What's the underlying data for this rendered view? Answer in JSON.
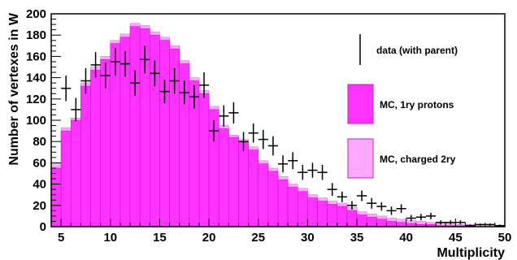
{
  "chart_data": {
    "type": "histogram",
    "xlabel": "Multiplicity",
    "ylabel": "Number of vertexes in W",
    "xlim": [
      4,
      50
    ],
    "ylim": [
      0,
      200
    ],
    "x_ticks": [
      5,
      10,
      15,
      20,
      25,
      30,
      35,
      40,
      45,
      50
    ],
    "y_ticks": [
      0,
      20,
      40,
      60,
      80,
      100,
      120,
      140,
      160,
      180,
      200
    ],
    "grid": false,
    "legend_position": "right",
    "colors": {
      "mc_protons": "#ff33ff",
      "mc_charged_2ry": "#ffaaff",
      "data_marker": "#000000"
    },
    "series": [
      {
        "name": "MC, charged 2ry",
        "kind": "histogram",
        "bin_width": 1,
        "bin_starts": [
          4,
          5,
          6,
          7,
          8,
          9,
          10,
          11,
          12,
          13,
          14,
          15,
          16,
          17,
          18,
          19,
          20,
          21,
          22,
          23,
          24,
          25,
          26,
          27,
          28,
          29,
          30,
          31,
          32,
          33,
          34,
          35,
          36,
          37,
          38,
          39,
          40,
          41,
          42,
          43,
          44,
          45,
          46,
          47,
          48,
          49
        ],
        "values": [
          60,
          93,
          102,
          135,
          150,
          160,
          175,
          181,
          191,
          189,
          183,
          178,
          170,
          156,
          140,
          128,
          113,
          95,
          86,
          82,
          75,
          62,
          55,
          47,
          40,
          36,
          30,
          27,
          24,
          22,
          18,
          14,
          12,
          10,
          8,
          7,
          6,
          5,
          4,
          3,
          3,
          2,
          2,
          1,
          1,
          1
        ]
      },
      {
        "name": "MC, 1ry protons",
        "kind": "histogram",
        "bin_width": 1,
        "bin_starts": [
          4,
          5,
          6,
          7,
          8,
          9,
          10,
          11,
          12,
          13,
          14,
          15,
          16,
          17,
          18,
          19,
          20,
          21,
          22,
          23,
          24,
          25,
          26,
          27,
          28,
          29,
          30,
          31,
          32,
          33,
          34,
          35,
          36,
          37,
          38,
          39,
          40,
          41,
          42,
          43,
          44,
          45,
          46,
          47,
          48,
          49
        ],
        "values": [
          55,
          90,
          100,
          132,
          147,
          157,
          172,
          178,
          188,
          186,
          180,
          175,
          167,
          153,
          137,
          125,
          110,
          92,
          84,
          80,
          72,
          59,
          52,
          44,
          37,
          33,
          27,
          24,
          21,
          19,
          15,
          11,
          9,
          7,
          5,
          4,
          3,
          2,
          2,
          1,
          1,
          1,
          1,
          0,
          0,
          0
        ]
      },
      {
        "name": "data (with parent)",
        "kind": "points_with_errors",
        "x": [
          5.5,
          6.5,
          7.5,
          8.5,
          9.5,
          10.5,
          11.5,
          12.5,
          13.5,
          14.5,
          15.5,
          16.5,
          17.5,
          18.5,
          19.5,
          20.5,
          21.5,
          22.5,
          23.5,
          24.5,
          25.5,
          26.5,
          27.5,
          28.5,
          29.5,
          30.5,
          31.5,
          32.5,
          33.5,
          34.5,
          35.5,
          36.5,
          37.5,
          38.5,
          39.5,
          40.5,
          41.5,
          42.5,
          43.5,
          44.5,
          45.5,
          46.5,
          47.5,
          48.5,
          49.5
        ],
        "y": [
          130,
          110,
          137,
          152,
          142,
          155,
          153,
          135,
          157,
          144,
          127,
          137,
          126,
          122,
          133,
          90,
          104,
          107,
          80,
          88,
          82,
          76,
          59,
          62,
          51,
          53,
          51,
          35,
          28,
          20,
          29,
          22,
          19,
          15,
          17,
          8,
          9,
          10,
          4,
          4,
          4,
          1,
          2,
          2,
          1
        ],
        "err": [
          12,
          11,
          12,
          12,
          12,
          13,
          12,
          12,
          13,
          12,
          11,
          12,
          11,
          11,
          12,
          10,
          10,
          10,
          9,
          9,
          9,
          9,
          8,
          8,
          7,
          7,
          7,
          6,
          5,
          4,
          5,
          5,
          4,
          4,
          4,
          3,
          3,
          3,
          2,
          2,
          2,
          1,
          1,
          1,
          1
        ]
      }
    ]
  },
  "legend": {
    "items": [
      {
        "label": "data (with parent)",
        "kind": "marker"
      },
      {
        "label": "MC, 1ry protons",
        "kind": "box",
        "color": "#ff33ff"
      },
      {
        "label": "MC, charged 2ry",
        "kind": "box",
        "color": "#ffaaff"
      }
    ]
  }
}
